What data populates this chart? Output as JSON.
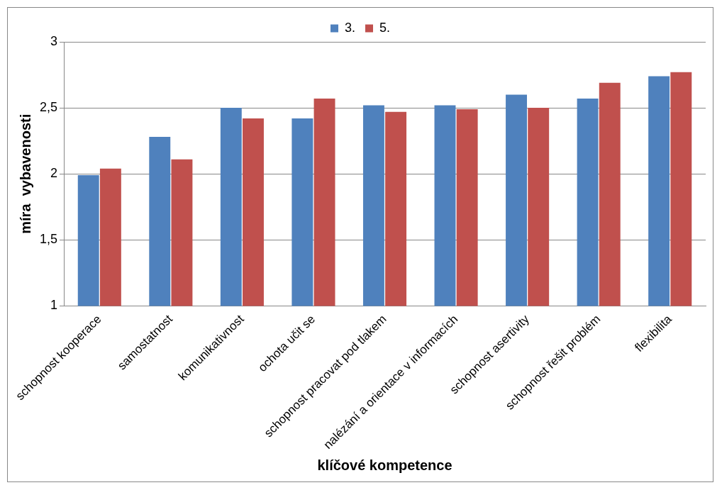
{
  "chart_data": {
    "type": "bar",
    "xlabel": "klíčové kompetence",
    "ylabel": "míra  vybavenosti",
    "categories": [
      "schopnost kooperace",
      "samostatnost",
      "komunikativnost",
      "ochota učit se",
      "schopnost pracovat pod tlakem",
      "nalézání a orientace v informacích",
      "schopnost asertivity",
      "schopnost řešit problém",
      "flexibilita"
    ],
    "series": [
      {
        "name": "3.",
        "color": "#4f81bd",
        "values": [
          1.99,
          2.28,
          2.5,
          2.42,
          2.52,
          2.52,
          2.6,
          2.57,
          2.74
        ]
      },
      {
        "name": "5.",
        "color": "#c0504d",
        "values": [
          2.04,
          2.11,
          2.42,
          2.57,
          2.47,
          2.49,
          2.5,
          2.69,
          2.77
        ]
      }
    ],
    "ylim": [
      1,
      3
    ],
    "yticks": [
      {
        "value": 1,
        "label": "1"
      },
      {
        "value": 1.5,
        "label": "1,5"
      },
      {
        "value": 2,
        "label": "2"
      },
      {
        "value": 2.5,
        "label": "2,5"
      },
      {
        "value": 3,
        "label": "3"
      }
    ],
    "grid": "y",
    "legend": "top"
  }
}
